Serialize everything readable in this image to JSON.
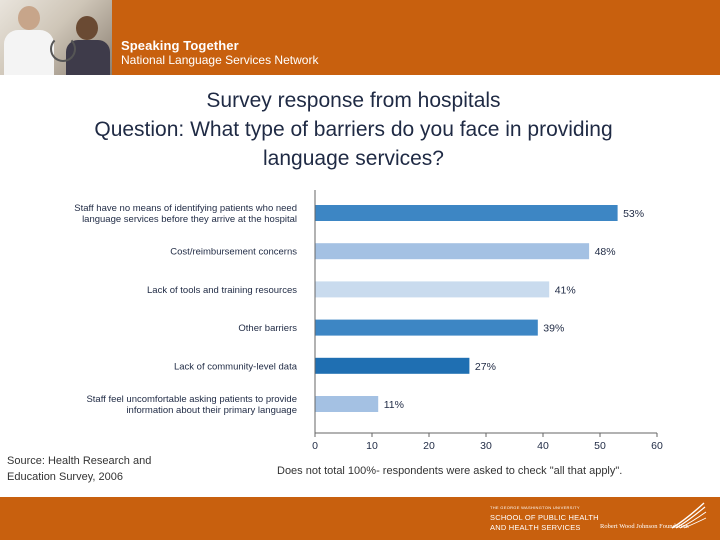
{
  "header": {
    "line1": "Speaking Together",
    "line2": "National Language Services Network"
  },
  "title": {
    "line1": "Survey response from hospitals",
    "line2": "Question: What type of barriers do you face in providing",
    "line3": "language services?"
  },
  "chart_data": {
    "type": "bar",
    "orientation": "horizontal",
    "categories": [
      [
        "Staff have no means of identifying patients who need",
        "language services before they arrive at the hospital"
      ],
      [
        "Cost/reimbursement concerns"
      ],
      [
        "Lack of tools and training resources"
      ],
      [
        "Other barriers"
      ],
      [
        "Lack of community-level data"
      ],
      [
        "Staff feel uncomfortable asking patients to provide",
        "information about their primary language"
      ]
    ],
    "values": [
      53,
      48,
      41,
      39,
      27,
      11
    ],
    "value_labels": [
      "53%",
      "48%",
      "41%",
      "39%",
      "27%",
      "11%"
    ],
    "bar_colors": [
      "#3d86c4",
      "#a4c1e3",
      "#c9dbee",
      "#3d86c4",
      "#1f6fb2",
      "#a4c1e3"
    ],
    "xlim": [
      0,
      60
    ],
    "xticks": [
      0,
      10,
      20,
      30,
      40,
      50,
      60
    ],
    "title": "",
    "xlabel": "",
    "ylabel": ""
  },
  "source": {
    "line1": "Source: Health Research and",
    "line2": "Education Survey, 2006"
  },
  "note": "Does not total 100%- respondents were asked to check \"all that apply\".",
  "footer": {
    "gw_small": "THE GEORGE WASHINGTON UNIVERSITY",
    "gw_line1": "SCHOOL OF PUBLIC HEALTH",
    "gw_line2": "AND HEALTH SERVICES",
    "rwjf": "Robert Wood Johnson Foundation"
  },
  "colors": {
    "brand_orange": "#c8600e",
    "title_text": "#1f2a44"
  }
}
